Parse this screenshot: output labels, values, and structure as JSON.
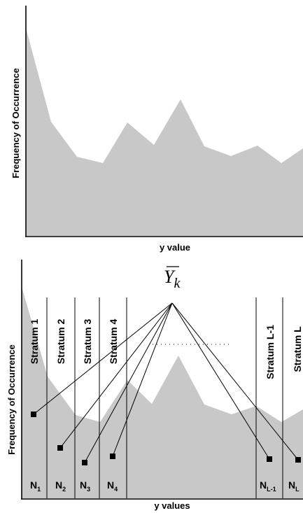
{
  "top_panel": {
    "x_axis_label": "y value",
    "y_axis_label": "Frequency of Occurrence"
  },
  "bottom_panel": {
    "x_axis_label": "y values",
    "y_axis_label": "Frequency of Occurrence",
    "mean_symbol": {
      "letter": "Y",
      "subscript": "k"
    },
    "strata": [
      {
        "label": "Stratum 1",
        "size_letter": "N",
        "size_subscript": "1"
      },
      {
        "label": "Stratum 2",
        "size_letter": "N",
        "size_subscript": "2"
      },
      {
        "label": "Stratum 3",
        "size_letter": "N",
        "size_subscript": "3"
      },
      {
        "label": "Stratum 4",
        "size_letter": "N",
        "size_subscript": "4"
      },
      {
        "label": "Stratum L-1",
        "size_letter": "N",
        "size_subscript": "L-1"
      },
      {
        "label": "Stratum L",
        "size_letter": "N",
        "size_subscript": "L"
      }
    ]
  },
  "colors": {
    "distribution_fill": "#c8c8c8",
    "lines": "#000000"
  }
}
